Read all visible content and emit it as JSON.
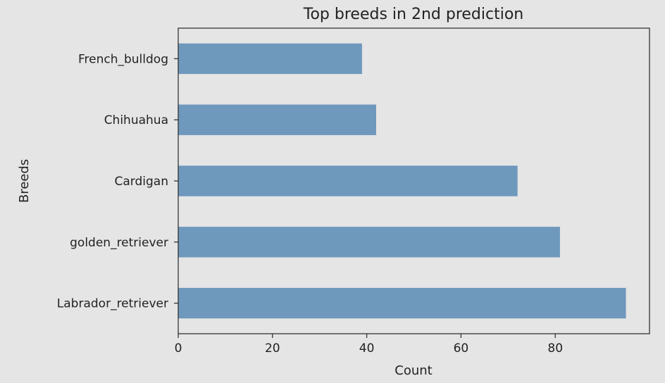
{
  "chart_data": {
    "type": "bar",
    "orientation": "horizontal",
    "title": "Top breeds in 2nd prediction",
    "xlabel": "Count",
    "ylabel": "Breeds",
    "categories": [
      "Labrador_retriever",
      "golden_retriever",
      "Cardigan",
      "Chihuahua",
      "French_bulldog"
    ],
    "values": [
      95,
      81,
      72,
      42,
      39
    ],
    "xlim": [
      0,
      100
    ],
    "xticks": [
      0,
      20,
      40,
      60,
      80
    ],
    "grid": false,
    "legend": "none",
    "colors": {
      "bar": "#6f98bd",
      "background": "#e5e5e5",
      "plot_background": "#e5e5e5",
      "axis": "#333333",
      "text": "#222222"
    }
  }
}
